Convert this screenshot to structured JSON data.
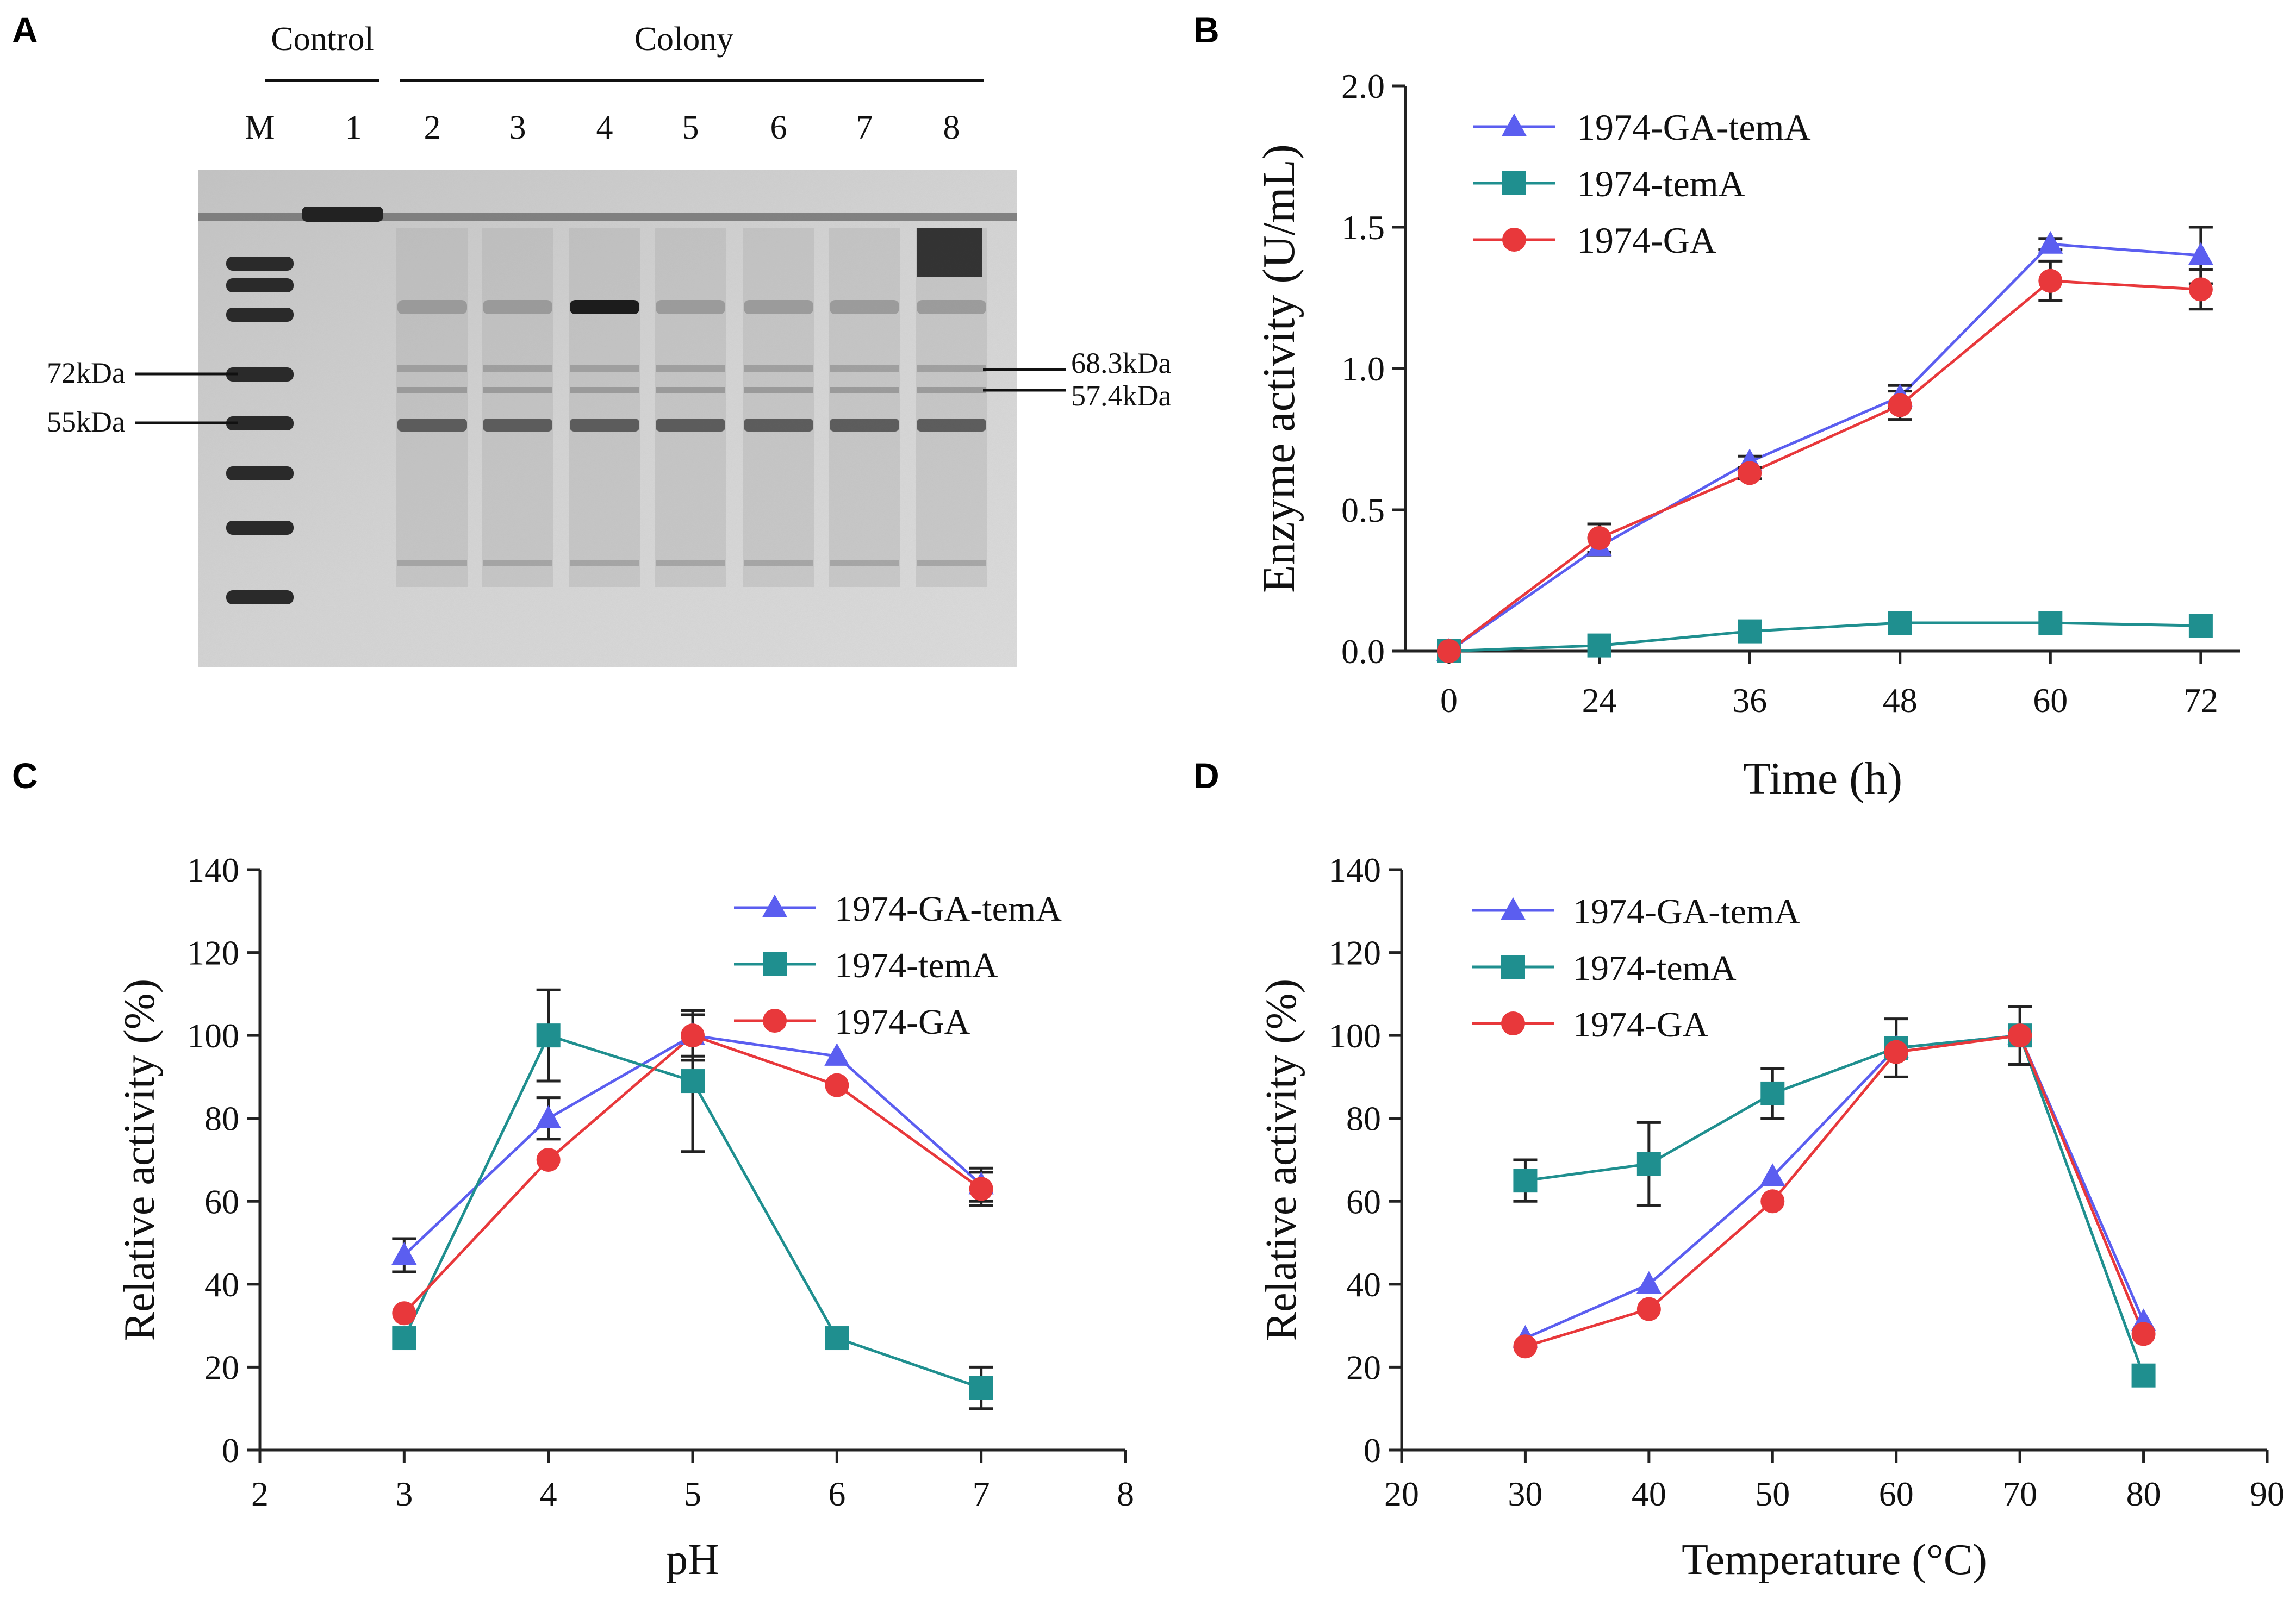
{
  "panel_letters": [
    "A",
    "B",
    "C",
    "D"
  ],
  "colors": {
    "GA_temA": "#5b5ef0",
    "temA": "#1f8f8f",
    "GA": "#e8383b",
    "axis": "#222222",
    "gel_bg": "#cfcfcf"
  },
  "gel": {
    "groups": [
      {
        "label": "Control"
      },
      {
        "label": "Colony"
      }
    ],
    "lanes": [
      "M",
      "1",
      "2",
      "3",
      "4",
      "5",
      "6",
      "7",
      "8"
    ],
    "markers_left": [
      "72kDa",
      "55kDa"
    ],
    "markers_right": [
      "68.3kDa",
      "57.4kDa"
    ]
  },
  "chart_data": [
    {
      "panel": "B",
      "type": "line",
      "xlabel": "Time (h)",
      "ylabel": "Enzyme activity (U/mL)",
      "x": [
        0,
        24,
        36,
        48,
        60,
        72
      ],
      "xticks": [
        "0",
        "24",
        "36",
        "48",
        "60",
        "72"
      ],
      "ylim": [
        0,
        2.0
      ],
      "yticks": [
        "0.0",
        "0.5",
        "1.0",
        "1.5",
        "2.0"
      ],
      "legend": "top-left",
      "series": [
        {
          "name": "1974-GA-temA",
          "marker": "triangle",
          "values": [
            0,
            0.37,
            0.67,
            0.9,
            1.44,
            1.4
          ],
          "err": [
            0,
            0.03,
            0.02,
            0.04,
            0.02,
            0.1
          ]
        },
        {
          "name": "1974-temA",
          "marker": "square",
          "values": [
            0,
            0.02,
            0.07,
            0.1,
            0.1,
            0.09
          ],
          "err": [
            0,
            0,
            0,
            0,
            0,
            0
          ]
        },
        {
          "name": "1974-GA",
          "marker": "circle",
          "values": [
            0,
            0.4,
            0.63,
            0.87,
            1.31,
            1.28
          ],
          "err": [
            0,
            0.05,
            0.02,
            0.05,
            0.07,
            0.07
          ]
        }
      ]
    },
    {
      "panel": "C",
      "type": "line",
      "xlabel": "pH",
      "ylabel": "Relative activity (%)",
      "x": [
        3,
        4,
        5,
        6,
        7
      ],
      "xlim": [
        2,
        8
      ],
      "xticks": [
        "2",
        "3",
        "4",
        "5",
        "6",
        "7",
        "8"
      ],
      "ylim": [
        0,
        140
      ],
      "yticks": [
        "0",
        "20",
        "40",
        "60",
        "80",
        "100",
        "120",
        "140"
      ],
      "legend": "top-right",
      "series": [
        {
          "name": "1974-GA-temA",
          "marker": "triangle",
          "values": [
            47,
            80,
            100,
            95,
            64
          ],
          "err": [
            4,
            5,
            5,
            0,
            4
          ]
        },
        {
          "name": "1974-temA",
          "marker": "square",
          "values": [
            27,
            100,
            89,
            27,
            15
          ],
          "err": [
            0,
            11,
            17,
            0,
            5
          ]
        },
        {
          "name": "1974-GA",
          "marker": "circle",
          "values": [
            33,
            70,
            100,
            88,
            63
          ],
          "err": [
            0,
            0,
            6,
            0,
            4
          ]
        }
      ]
    },
    {
      "panel": "D",
      "type": "line",
      "xlabel": "Temperature (°C)",
      "ylabel": "Relative activity (%)",
      "x": [
        30,
        40,
        50,
        60,
        70,
        80
      ],
      "xlim": [
        20,
        90
      ],
      "xticks": [
        "20",
        "30",
        "40",
        "50",
        "60",
        "70",
        "80",
        "90"
      ],
      "ylim": [
        0,
        140
      ],
      "yticks": [
        "0",
        "20",
        "40",
        "60",
        "80",
        "100",
        "120",
        "140"
      ],
      "legend": "top-left",
      "series": [
        {
          "name": "1974-GA-temA",
          "marker": "triangle",
          "values": [
            27,
            40,
            66,
            97,
            100,
            31
          ],
          "err": [
            0,
            0,
            0,
            0,
            0,
            0
          ]
        },
        {
          "name": "1974-temA",
          "marker": "square",
          "values": [
            65,
            69,
            86,
            97,
            100,
            18
          ],
          "err": [
            5,
            10,
            6,
            7,
            7,
            0
          ]
        },
        {
          "name": "1974-GA",
          "marker": "circle",
          "values": [
            25,
            34,
            60,
            96,
            100,
            28
          ],
          "err": [
            0,
            0,
            0,
            0,
            0,
            0
          ]
        }
      ]
    }
  ]
}
